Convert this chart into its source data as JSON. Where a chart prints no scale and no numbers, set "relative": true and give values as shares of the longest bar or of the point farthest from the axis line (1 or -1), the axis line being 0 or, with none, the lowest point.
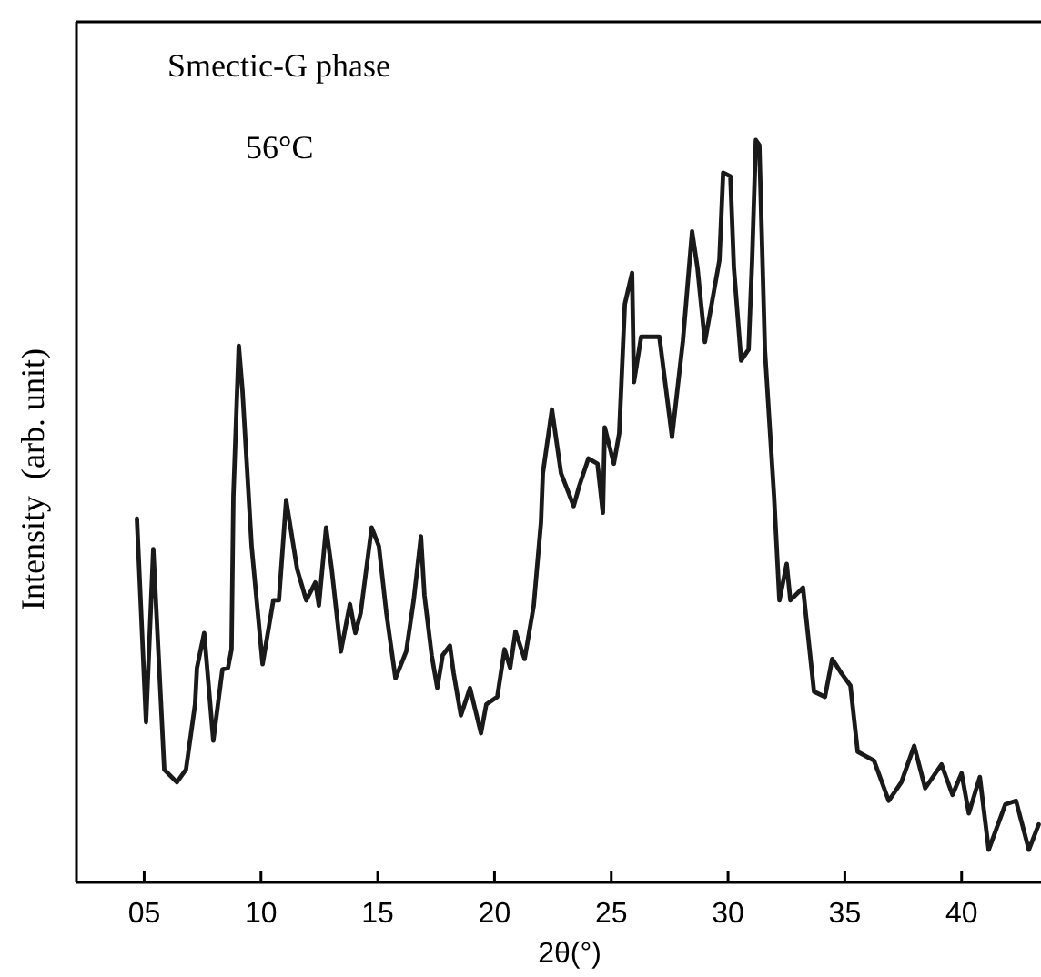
{
  "chart_data": {
    "type": "line",
    "title": "Smectic-G phase",
    "annotations": [
      "56°C"
    ],
    "xlabel": "2θ(°)",
    "ylabel": "Intensity  (arb. unit)",
    "relative": true,
    "xlim": [
      2.1,
      43.4
    ],
    "xticks": [
      {
        "value": 5,
        "label": "05"
      },
      10,
      15,
      20,
      25,
      30,
      35,
      40
    ],
    "grid": false,
    "series": [
      {
        "color": "#1a1a1a",
        "x": [
          4.69,
          5.08,
          5.39,
          5.86,
          6.4,
          6.79,
          7.18,
          7.26,
          7.57,
          7.96,
          8.35,
          8.59,
          8.74,
          8.82,
          9.05,
          9.21,
          9.6,
          10.07,
          10.53,
          10.77,
          11.08,
          11.55,
          11.94,
          12.33,
          12.48,
          12.79,
          13.03,
          13.42,
          13.81,
          14.04,
          14.27,
          14.74,
          15.05,
          15.37,
          15.76,
          16.22,
          16.54,
          16.85,
          17.0,
          17.31,
          17.55,
          17.78,
          18.09,
          18.25,
          18.56,
          18.95,
          19.42,
          19.65,
          20.12,
          20.43,
          20.67,
          20.9,
          21.29,
          21.68,
          21.99,
          22.07,
          22.46,
          22.85,
          23.39,
          23.63,
          24.02,
          24.41,
          24.64,
          24.72,
          25.11,
          25.34,
          25.58,
          25.89,
          25.97,
          26.28,
          27.06,
          27.6,
          28.07,
          28.46,
          28.69,
          29.01,
          29.63,
          29.79,
          30.1,
          30.25,
          30.56,
          30.88,
          31.03,
          31.19,
          31.34,
          31.58,
          31.97,
          32.2,
          32.51,
          32.67,
          33.21,
          33.68,
          34.15,
          34.46,
          34.85,
          35.24,
          35.55,
          36.25,
          36.88,
          37.42,
          37.97,
          38.44,
          39.14,
          39.61,
          40.0,
          40.31,
          40.78,
          41.16,
          41.87,
          42.33,
          42.88,
          43.3
        ],
        "values": [
          0.49,
          0.216,
          0.449,
          0.152,
          0.135,
          0.152,
          0.24,
          0.289,
          0.336,
          0.191,
          0.287,
          0.289,
          0.314,
          0.52,
          0.723,
          0.662,
          0.453,
          0.294,
          0.38,
          0.38,
          0.515,
          0.422,
          0.38,
          0.404,
          0.373,
          0.478,
          0.422,
          0.311,
          0.375,
          0.336,
          0.363,
          0.478,
          0.453,
          0.363,
          0.275,
          0.311,
          0.38,
          0.466,
          0.387,
          0.306,
          0.262,
          0.306,
          0.319,
          0.282,
          0.225,
          0.262,
          0.201,
          0.24,
          0.25,
          0.314,
          0.289,
          0.338,
          0.301,
          0.373,
          0.485,
          0.551,
          0.637,
          0.551,
          0.507,
          0.534,
          0.571,
          0.564,
          0.498,
          0.613,
          0.564,
          0.605,
          0.779,
          0.821,
          0.674,
          0.735,
          0.735,
          0.6,
          0.73,
          0.877,
          0.828,
          0.728,
          0.838,
          0.956,
          0.951,
          0.828,
          0.703,
          0.718,
          0.838,
          1.0,
          0.993,
          0.716,
          0.52,
          0.38,
          0.429,
          0.38,
          0.397,
          0.257,
          0.25,
          0.301,
          0.282,
          0.265,
          0.176,
          0.164,
          0.11,
          0.135,
          0.184,
          0.127,
          0.159,
          0.118,
          0.147,
          0.093,
          0.142,
          0.044,
          0.105,
          0.11,
          0.044,
          0.078
        ]
      }
    ]
  }
}
